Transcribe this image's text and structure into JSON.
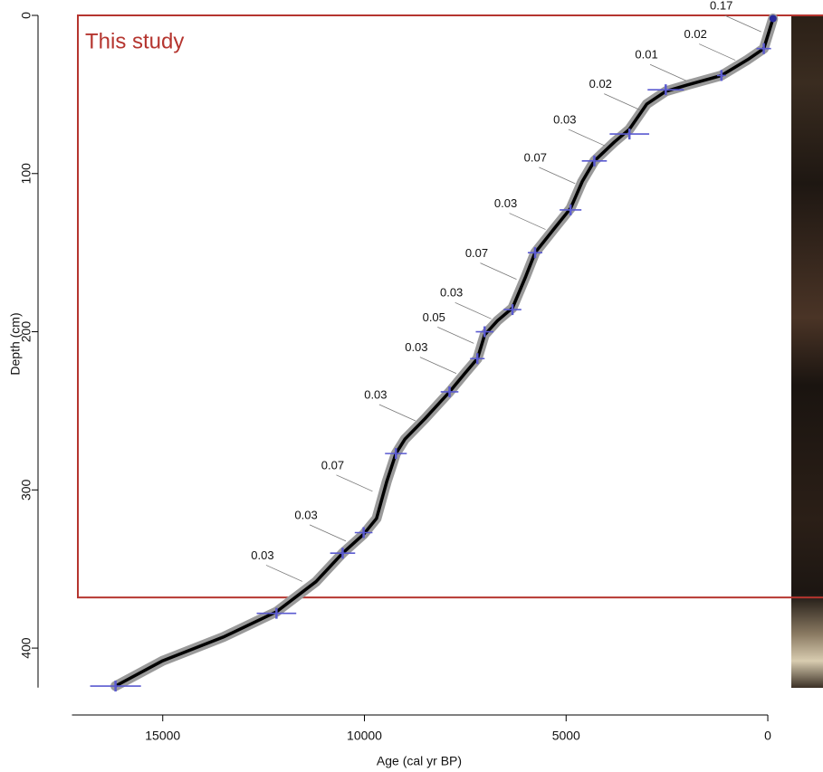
{
  "chart_data": {
    "type": "line",
    "xlabel": "Age (cal yr BP)",
    "ylabel": "Depth (cm)",
    "xlim": [
      17250,
      -300
    ],
    "ylim": [
      0,
      440
    ],
    "xticks": [
      15000,
      10000,
      5000,
      0
    ],
    "yticks": [
      0,
      100,
      200,
      300,
      400
    ],
    "color": "#000000",
    "x": [
      -130,
      100,
      500,
      1150,
      2000,
      2530,
      3000,
      3430,
      3800,
      4300,
      4600,
      4890,
      5300,
      5770,
      6000,
      6330,
      6700,
      7020,
      7200,
      7500,
      7890,
      8500,
      9000,
      9220,
      9450,
      9700,
      10020,
      10540,
      11200,
      12180,
      13500,
      15000,
      16170
    ],
    "values": [
      2,
      21,
      28,
      38,
      44,
      48,
      56,
      72,
      80,
      92,
      105,
      122,
      135,
      150,
      165,
      185,
      193,
      202,
      217,
      226,
      238,
      255,
      268,
      277,
      295,
      318,
      328,
      340,
      358,
      377,
      393,
      408,
      424
    ],
    "dates": {
      "color": "#5a5ad0",
      "x": [
        -130,
        100,
        1150,
        2530,
        3430,
        4300,
        4890,
        5770,
        6330,
        7020,
        7200,
        7890,
        9220,
        10020,
        10540,
        12180,
        16170
      ],
      "values": [
        2,
        21,
        38,
        47,
        75,
        92,
        123,
        150,
        186,
        200,
        217,
        238,
        277,
        327,
        340,
        378,
        424
      ],
      "x_err": [
        0,
        180,
        110,
        450,
        490,
        310,
        270,
        180,
        220,
        220,
        180,
        220,
        270,
        220,
        310,
        490,
        630
      ]
    },
    "sed_rates": [
      0.17,
      0.02,
      0.01,
      0.02,
      0.03,
      0.07,
      0.03,
      0.07,
      0.03,
      0.05,
      0.03,
      0.03,
      0.07,
      0.03,
      0.03
    ],
    "highlight": {
      "label": "This study",
      "ylim": [
        0,
        368
      ],
      "color": "#b5352f"
    }
  }
}
